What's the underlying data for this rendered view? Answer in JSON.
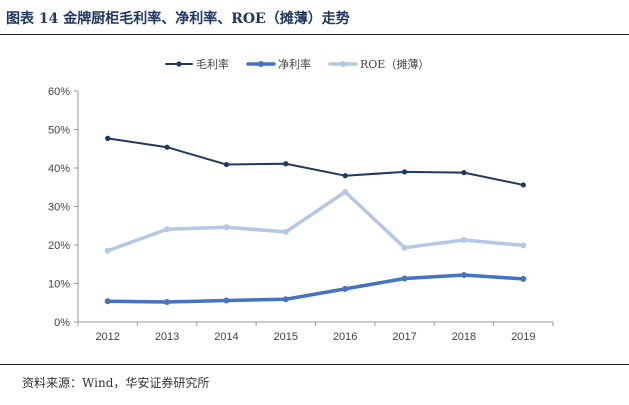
{
  "header": {
    "title": "图表 14 金牌厨柜毛利率、净利率、ROE（摊薄）走势"
  },
  "footer": {
    "source": "资料来源：Wind，华安证券研究所"
  },
  "chart_data": {
    "type": "line",
    "title": "图表 14 金牌厨柜毛利率、净利率、ROE（摊薄）走势",
    "xlabel": "",
    "ylabel": "",
    "ylim": [
      0,
      60
    ],
    "yticks": [
      "0%",
      "10%",
      "20%",
      "30%",
      "40%",
      "50%",
      "60%"
    ],
    "categories": [
      "2012",
      "2013",
      "2014",
      "2015",
      "2016",
      "2017",
      "2018",
      "2019"
    ],
    "legend_position": "top-center",
    "series": [
      {
        "name": "毛利率",
        "color": "#1f3864",
        "values": [
          47.7,
          45.4,
          40.9,
          41.1,
          38.0,
          39.0,
          38.8,
          35.6
        ]
      },
      {
        "name": "净利率",
        "color": "#4472c4",
        "values": [
          5.4,
          5.2,
          5.6,
          5.9,
          8.6,
          11.3,
          12.2,
          11.2
        ]
      },
      {
        "name": "ROE（摊薄）",
        "color": "#b4c7e7",
        "values": [
          18.5,
          24.1,
          24.6,
          23.4,
          33.8,
          19.3,
          21.3,
          19.9
        ]
      }
    ]
  }
}
